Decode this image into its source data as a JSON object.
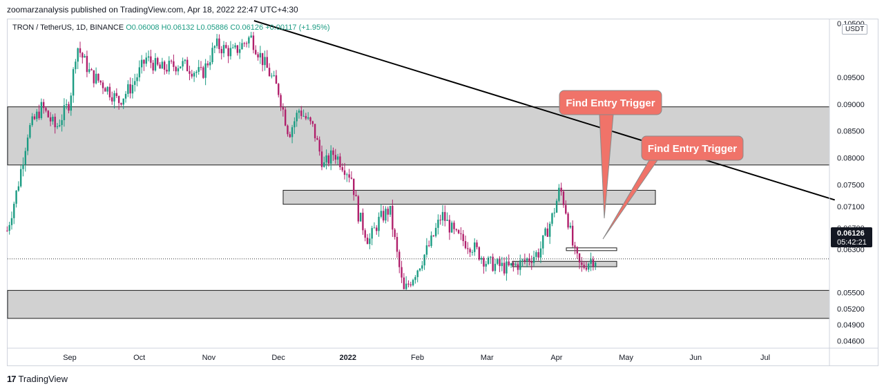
{
  "publisher": "zoomarzanalysis published on TradingView.com, Apr 18, 2022 22:47 UTC+4:30",
  "ticker": {
    "symbol": "TRON / TetherUS, 1D, BINANCE",
    "o": "O0.06008",
    "h": "H0.06132",
    "l": "L0.05886",
    "c": "C0.06126",
    "change": "+0.00117 (+1.95%)"
  },
  "currency_badge": "USDT",
  "footer_brand": "TradingView",
  "last_price": {
    "value": "0.06126",
    "countdown": "05:42:21"
  },
  "annotations": [
    {
      "text": "Find Entry Trigger"
    },
    {
      "text": "Find Entry Trigger"
    }
  ],
  "chart_data": {
    "type": "candlestick",
    "title": "TRON / TetherUS, 1D, BINANCE",
    "x_tick_labels": [
      "Sep",
      "Oct",
      "Nov",
      "Dec",
      "2022",
      "Feb",
      "Mar",
      "Apr",
      "May",
      "Jun",
      "Jul"
    ],
    "y_tick_labels": [
      "0.10500",
      "0.09500",
      "0.09000",
      "0.08500",
      "0.08000",
      "0.07500",
      "0.07100",
      "0.06700",
      "0.06300",
      "0.05500",
      "0.05200",
      "0.04900",
      "0.04600"
    ],
    "ylim": [
      0.0455,
      0.1055
    ],
    "x_month_index": {
      "Aug": -1,
      "Sep": 0,
      "Oct": 1,
      "Nov": 2,
      "Dec": 3,
      "2022": 4,
      "Feb": 5,
      "Mar": 6,
      "Apr": 7,
      "May": 8,
      "Jun": 9,
      "Jul": 10
    },
    "price_path": [
      {
        "t": -0.9,
        "p": 0.0665
      },
      {
        "t": -0.75,
        "p": 0.0745
      },
      {
        "t": -0.6,
        "p": 0.085
      },
      {
        "t": -0.4,
        "p": 0.0895
      },
      {
        "t": -0.2,
        "p": 0.0855
      },
      {
        "t": 0.0,
        "p": 0.0905
      },
      {
        "t": 0.1,
        "p": 0.101
      },
      {
        "t": 0.3,
        "p": 0.0955
      },
      {
        "t": 0.5,
        "p": 0.0935
      },
      {
        "t": 0.7,
        "p": 0.0905
      },
      {
        "t": 0.9,
        "p": 0.0935
      },
      {
        "t": 1.1,
        "p": 0.0985
      },
      {
        "t": 1.3,
        "p": 0.0965
      },
      {
        "t": 1.6,
        "p": 0.0975
      },
      {
        "t": 1.9,
        "p": 0.0955
      },
      {
        "t": 2.1,
        "p": 0.101
      },
      {
        "t": 2.35,
        "p": 0.0995
      },
      {
        "t": 2.6,
        "p": 0.1025
      },
      {
        "t": 2.8,
        "p": 0.0975
      },
      {
        "t": 3.0,
        "p": 0.0925
      },
      {
        "t": 3.15,
        "p": 0.0845
      },
      {
        "t": 3.3,
        "p": 0.089
      },
      {
        "t": 3.5,
        "p": 0.0855
      },
      {
        "t": 3.65,
        "p": 0.0785
      },
      {
        "t": 3.8,
        "p": 0.081
      },
      {
        "t": 4.05,
        "p": 0.0765
      },
      {
        "t": 4.15,
        "p": 0.0695
      },
      {
        "t": 4.3,
        "p": 0.0645
      },
      {
        "t": 4.45,
        "p": 0.0685
      },
      {
        "t": 4.6,
        "p": 0.0705
      },
      {
        "t": 4.7,
        "p": 0.0625
      },
      {
        "t": 4.8,
        "p": 0.055
      },
      {
        "t": 5.0,
        "p": 0.0595
      },
      {
        "t": 5.2,
        "p": 0.0645
      },
      {
        "t": 5.35,
        "p": 0.0695
      },
      {
        "t": 5.55,
        "p": 0.0655
      },
      {
        "t": 5.8,
        "p": 0.0635
      },
      {
        "t": 6.0,
        "p": 0.0605
      },
      {
        "t": 6.3,
        "p": 0.0595
      },
      {
        "t": 6.5,
        "p": 0.0605
      },
      {
        "t": 6.75,
        "p": 0.0625
      },
      {
        "t": 6.95,
        "p": 0.0695
      },
      {
        "t": 7.05,
        "p": 0.0745
      },
      {
        "t": 7.15,
        "p": 0.0695
      },
      {
        "t": 7.25,
        "p": 0.0625
      },
      {
        "t": 7.35,
        "p": 0.0595
      },
      {
        "t": 7.5,
        "p": 0.0612
      },
      {
        "t": 7.58,
        "p": 0.0613
      }
    ],
    "zones": [
      {
        "name": "upper-resistance-zone",
        "from": 0.0787,
        "to": 0.0895
      },
      {
        "name": "mid-resistance-zone",
        "from": 0.0714,
        "to": 0.074
      },
      {
        "name": "demand-zone",
        "from": 0.0598,
        "to": 0.0608
      },
      {
        "name": "lower-support-zone",
        "from": 0.0502,
        "to": 0.0554
      }
    ],
    "trendline": {
      "from": {
        "t": 2.65,
        "p": 0.1055
      },
      "to": {
        "t": 11.0,
        "p": 0.0722
      }
    },
    "current_price": 0.06126
  }
}
